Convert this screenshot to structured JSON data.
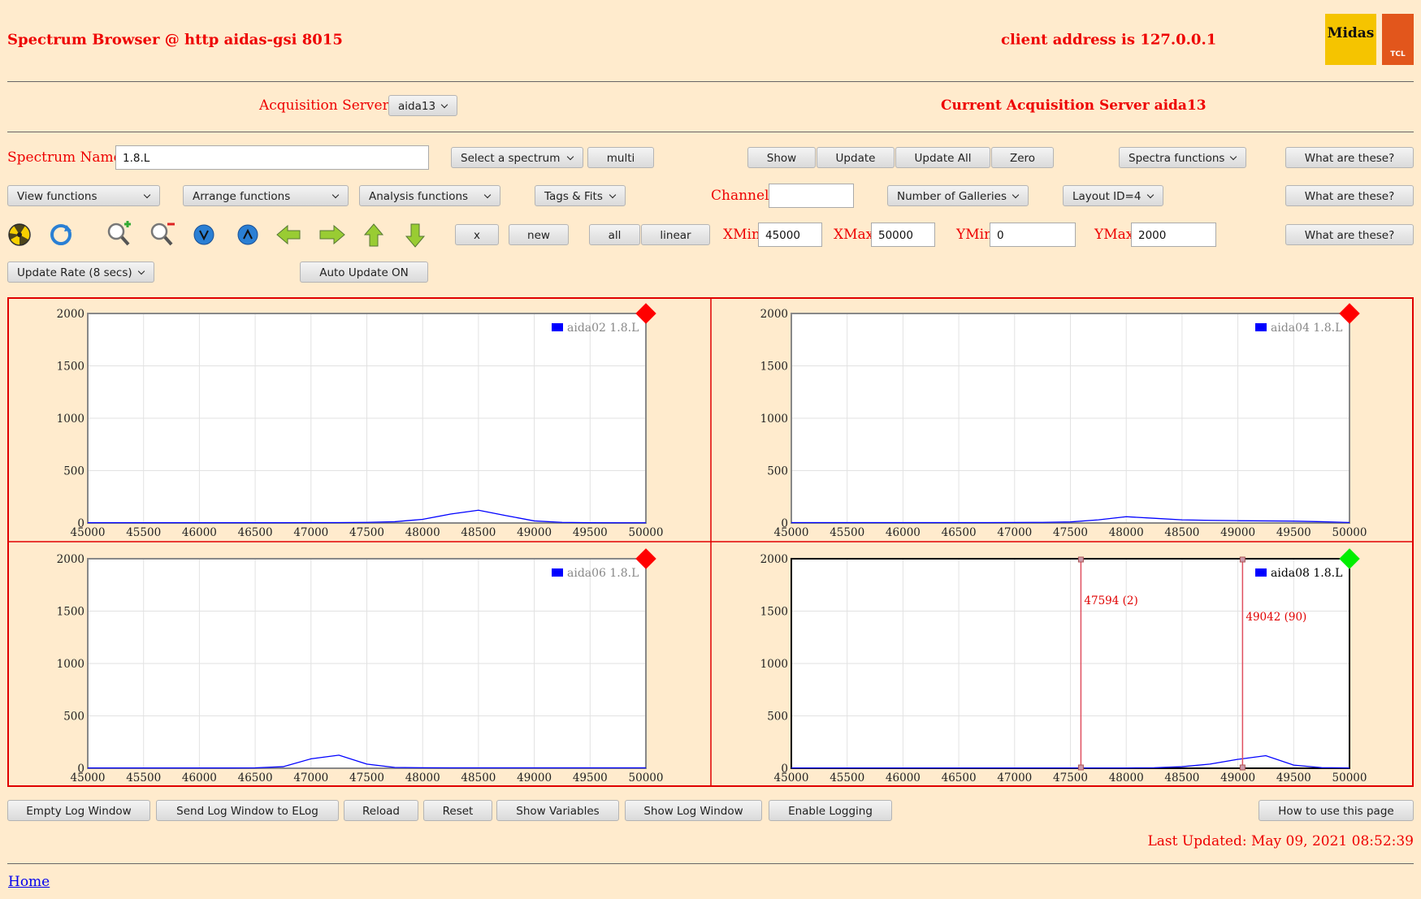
{
  "header": {
    "title": "Spectrum Browser @ http aidas-gsi 8015",
    "client": "client address is 127.0.0.1",
    "logos": [
      "Midas",
      "TCL"
    ]
  },
  "servers": {
    "label": "Acquisition Servers",
    "selected": "aida13",
    "current": "Current Acquisition Server aida13"
  },
  "controls": {
    "spectrum_label": "Spectrum Name:",
    "spectrum_name": "1.8.L",
    "select_spectrum": "Select a spectrum",
    "multi": "multi",
    "show": "Show",
    "update": "Update",
    "update_all": "Update All",
    "zero": "Zero",
    "spectra_functions": "Spectra functions",
    "help": [
      "What are these?",
      "What are these?",
      "What are these?"
    ],
    "view_functions": "View functions",
    "arrange_functions": "Arrange functions",
    "analysis_functions": "Analysis functions",
    "tags_fits": "Tags & Fits",
    "channel_label": "Channel:",
    "galleries": "Number of Galleries",
    "layout": "Layout ID=4",
    "x": "x",
    "new": "new",
    "all": "all",
    "linear": "linear",
    "xmin_label": "XMin",
    "xmin": 45000,
    "xmax_label": "XMax",
    "xmax": 50000,
    "ymin_label": "YMin",
    "ymin": 0,
    "ymax_label": "YMax",
    "ymax": 2000,
    "update_rate": "Update Rate (8 secs)",
    "auto_update": "Auto Update ON"
  },
  "footer": {
    "buttons": [
      "Empty Log Window",
      "Send Log Window to ELog",
      "Reload",
      "Reset",
      "Show Variables",
      "Show Log Window",
      "Enable Logging"
    ],
    "how_to": "How to use this page",
    "last_updated": "Last Updated: May 09, 2021 08:52:39",
    "home": "Home"
  },
  "chart_data": [
    {
      "type": "line",
      "active": false,
      "indicator_color": "#ff0000",
      "grid": true,
      "x": [
        45000,
        45250,
        45500,
        45750,
        46000,
        46250,
        46500,
        46750,
        47000,
        47250,
        47500,
        47750,
        48000,
        48250,
        48500,
        48750,
        49000,
        49250,
        49500,
        49750,
        50000
      ],
      "series": [
        {
          "name": "aida02 1.8.L",
          "color": "#0000ff",
          "values": [
            3,
            3,
            3,
            3,
            3,
            3,
            3,
            3,
            4,
            4,
            6,
            12,
            35,
            85,
            122,
            70,
            20,
            6,
            3,
            2,
            2
          ]
        }
      ],
      "xlim": [
        45000,
        50000
      ],
      "xticks": [
        45000,
        45500,
        46000,
        46500,
        47000,
        47500,
        48000,
        48500,
        49000,
        49500,
        50000
      ],
      "ylim": [
        0,
        2000
      ],
      "yticks": [
        0,
        500,
        1000,
        1500,
        2000
      ]
    },
    {
      "type": "line",
      "active": false,
      "indicator_color": "#ff0000",
      "grid": true,
      "x": [
        45000,
        45250,
        45500,
        45750,
        46000,
        46250,
        46500,
        46750,
        47000,
        47250,
        47500,
        47750,
        48000,
        48250,
        48500,
        48750,
        49000,
        49250,
        49500,
        49750,
        50000
      ],
      "series": [
        {
          "name": "aida04 1.8.L",
          "color": "#0000ff",
          "values": [
            4,
            4,
            4,
            4,
            4,
            4,
            4,
            4,
            5,
            6,
            10,
            30,
            60,
            45,
            30,
            25,
            22,
            20,
            18,
            12,
            5
          ]
        }
      ],
      "xlim": [
        45000,
        50000
      ],
      "xticks": [
        45000,
        45500,
        46000,
        46500,
        47000,
        47500,
        48000,
        48500,
        49000,
        49500,
        50000
      ],
      "ylim": [
        0,
        2000
      ],
      "yticks": [
        0,
        500,
        1000,
        1500,
        2000
      ]
    },
    {
      "type": "line",
      "active": false,
      "indicator_color": "#ff0000",
      "grid": true,
      "x": [
        45000,
        45250,
        45500,
        45750,
        46000,
        46250,
        46500,
        46750,
        47000,
        47250,
        47500,
        47750,
        48000,
        48250,
        48500,
        48750,
        49000,
        49250,
        49500,
        49750,
        50000
      ],
      "series": [
        {
          "name": "aida06 1.8.L",
          "color": "#0000ff",
          "values": [
            3,
            3,
            3,
            3,
            3,
            3,
            4,
            15,
            90,
            125,
            40,
            8,
            5,
            4,
            4,
            4,
            4,
            4,
            4,
            4,
            4
          ]
        }
      ],
      "xlim": [
        45000,
        50000
      ],
      "xticks": [
        45000,
        45500,
        46000,
        46500,
        47000,
        47500,
        48000,
        48500,
        49000,
        49500,
        50000
      ],
      "ylim": [
        0,
        2000
      ],
      "yticks": [
        0,
        500,
        1000,
        1500,
        2000
      ]
    },
    {
      "type": "line",
      "active": true,
      "indicator_color": "#00ee00",
      "grid": true,
      "x": [
        45000,
        45250,
        45500,
        45750,
        46000,
        46250,
        46500,
        46750,
        47000,
        47250,
        47500,
        47750,
        48000,
        48250,
        48500,
        48750,
        49000,
        49250,
        49500,
        49750,
        50000
      ],
      "series": [
        {
          "name": "aida08 1.8.L",
          "color": "#0000ff",
          "values": [
            3,
            3,
            3,
            3,
            3,
            3,
            3,
            3,
            3,
            3,
            3,
            3,
            3,
            5,
            15,
            40,
            85,
            120,
            30,
            6,
            3
          ]
        }
      ],
      "xlim": [
        45000,
        50000
      ],
      "xticks": [
        45000,
        45500,
        46000,
        46500,
        47000,
        47500,
        48000,
        48500,
        49000,
        49500,
        50000
      ],
      "ylim": [
        0,
        2000
      ],
      "yticks": [
        0,
        500,
        1000,
        1500,
        2000
      ],
      "annotations": [
        {
          "x": 47594,
          "label": "47594 (2)"
        },
        {
          "x": 49042,
          "label": "49042 (90)"
        }
      ]
    }
  ]
}
